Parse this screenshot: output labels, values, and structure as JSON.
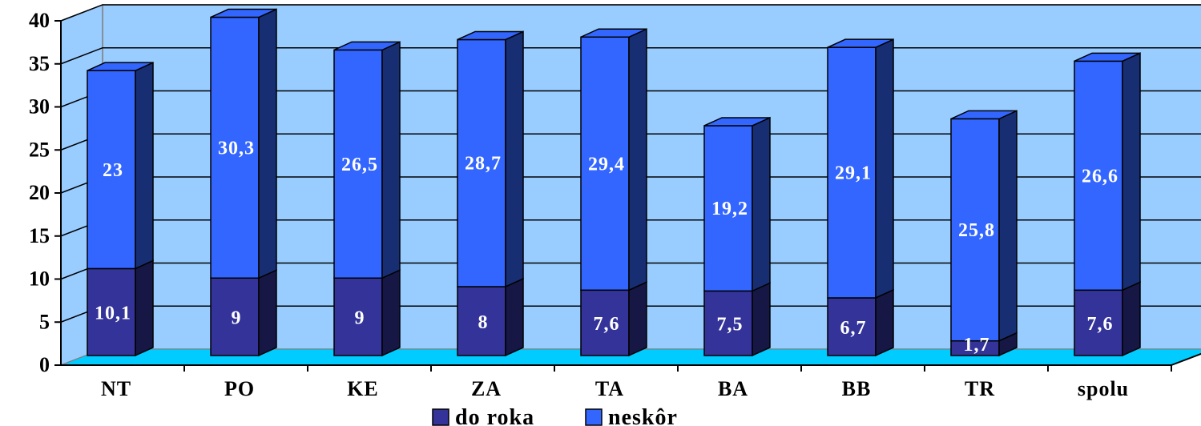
{
  "chart_data": {
    "type": "bar",
    "stacked": true,
    "style": "3d",
    "categories": [
      "NT",
      "PO",
      "KE",
      "ZA",
      "TA",
      "BA",
      "BB",
      "TR",
      "spolu"
    ],
    "series": [
      {
        "name": "do roka",
        "color": "#333399",
        "values": [
          10.1,
          9,
          9,
          8,
          7.6,
          7.5,
          6.7,
          1.7,
          7.6
        ],
        "labels": [
          "10,1",
          "9",
          "9",
          "8",
          "7,6",
          "7,5",
          "6,7",
          "1,7",
          "7,6"
        ]
      },
      {
        "name": "neskôr",
        "color": "#3366FF",
        "values": [
          23,
          30.3,
          26.5,
          28.7,
          29.4,
          19.2,
          29.1,
          25.8,
          26.6
        ],
        "labels": [
          "23",
          "30,3",
          "26,5",
          "28,7",
          "29,4",
          "19,2",
          "29,1",
          "25,8",
          "26,6"
        ]
      }
    ],
    "ylim": [
      0,
      40
    ],
    "yticks": [
      0,
      5,
      10,
      15,
      20,
      25,
      30,
      35,
      40
    ],
    "grid": true,
    "legend_position": "bottom",
    "colors": {
      "wall": "#99CCFF",
      "floor": "#00CCFF",
      "gridline": "#000000"
    }
  }
}
